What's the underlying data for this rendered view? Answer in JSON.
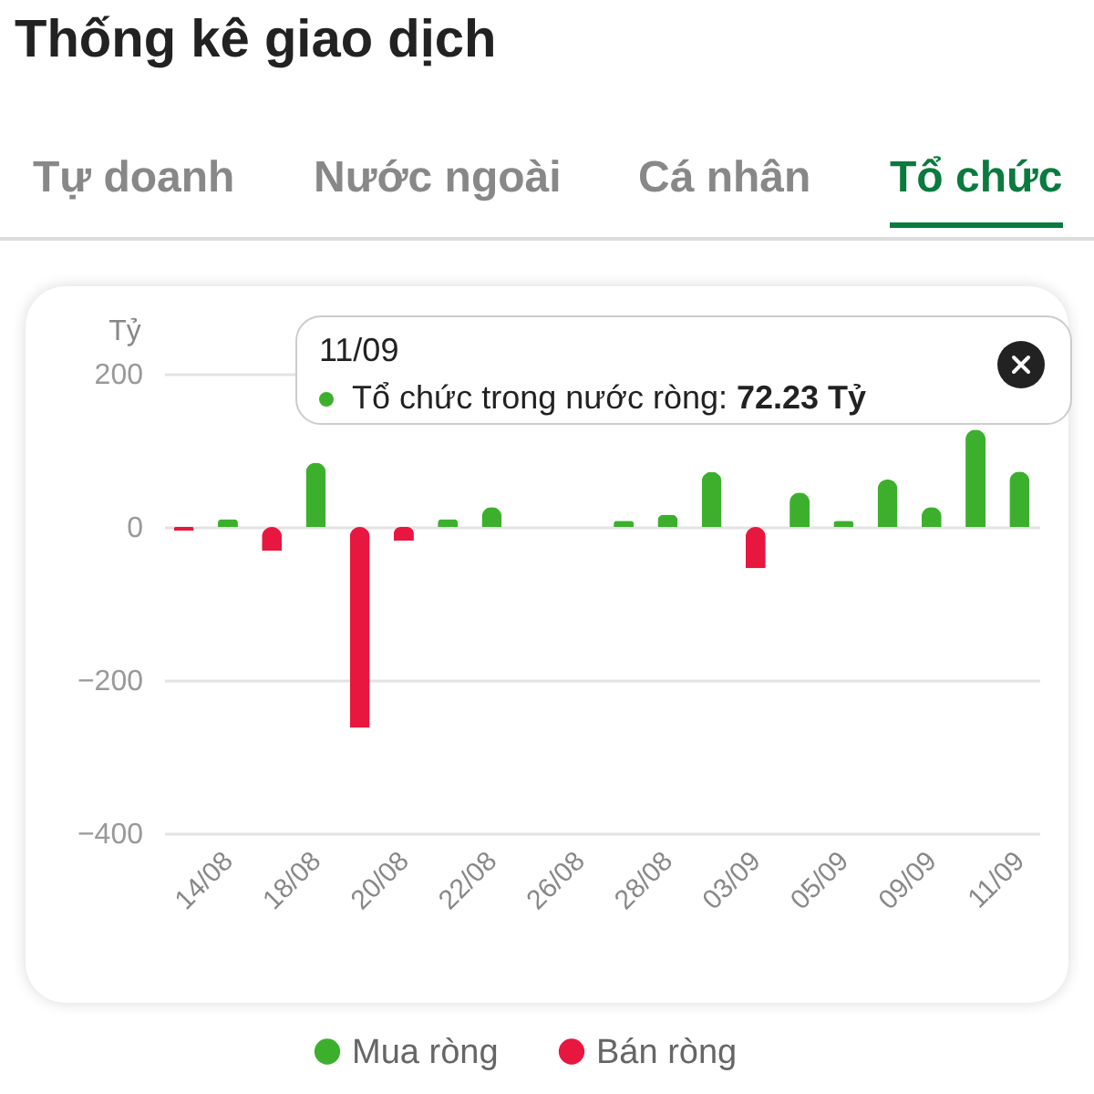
{
  "chart_data": {
    "type": "bar",
    "title": "Thống kê giao dịch",
    "ylabel": "Tỷ",
    "categories": [
      null,
      "14/08",
      null,
      "18/08",
      null,
      "20/08",
      null,
      "22/08",
      null,
      "26/08",
      null,
      "28/08",
      null,
      "03/09",
      null,
      "05/09",
      null,
      "09/09",
      null,
      "11/09"
    ],
    "series": [
      {
        "name": "Mua ròng",
        "color": "#3cb02c",
        "values": [
          null,
          10,
          null,
          84,
          null,
          null,
          10,
          26,
          null,
          null,
          8,
          16,
          72,
          null,
          45,
          8,
          62,
          26,
          127,
          72.23
        ]
      },
      {
        "name": "Bán ròng",
        "color": "#e8173f",
        "values": [
          -5,
          null,
          -31,
          null,
          -262,
          -18,
          null,
          null,
          null,
          null,
          null,
          null,
          null,
          -54,
          null,
          null,
          null,
          null,
          null,
          null
        ]
      }
    ],
    "ylim": [
      -400,
      200
    ],
    "yticks": [
      -400,
      -200,
      0,
      200
    ],
    "grid": "y",
    "legend": "bottom",
    "annotations": [
      "Tự doanh",
      "Nước ngoài",
      "Cá nhân",
      "Tổ chức",
      "11/09",
      "Tổ chức trong nước ròng: 72.23 Tỷ"
    ]
  }
}
